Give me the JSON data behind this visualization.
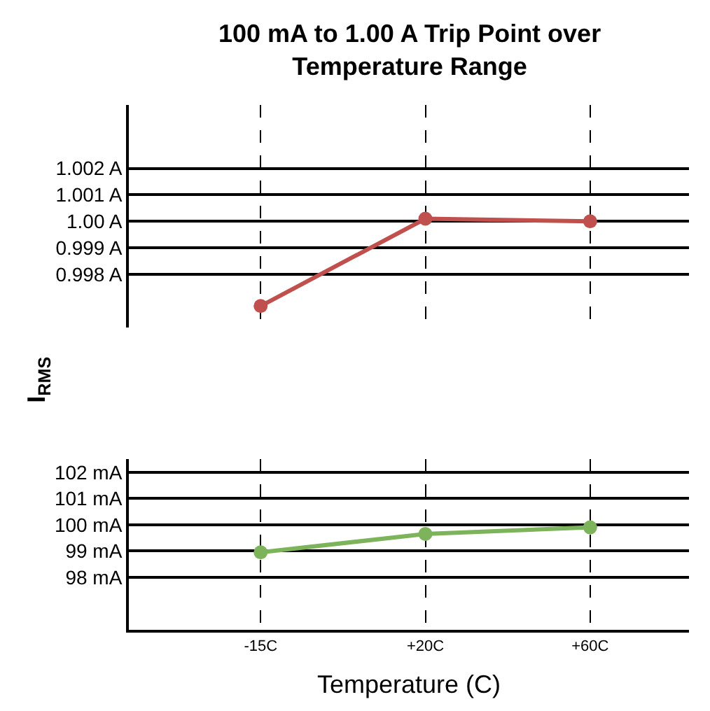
{
  "chart_data": [
    {
      "type": "line",
      "title": "100 mA to 1.00 A Trip Point over Temperature Range",
      "ylabel": "I$_{RMS}$",
      "categories": [
        null,
        null,
        null
      ],
      "series": [
        {
          "color": "#c0504d",
          "values": [
            0.9968,
            1.0001,
            1.0
          ]
        }
      ],
      "ylim": [
        0.996,
        1.0044
      ],
      "yticks": [
        {
          "value": 0.998,
          "label": "0.998 A"
        },
        {
          "value": 0.999,
          "label": "0.999 A"
        },
        {
          "value": 1.0,
          "label": "1.00 A"
        },
        {
          "value": 1.001,
          "label": "1.001 A"
        },
        {
          "value": 1.002,
          "label": "1.002 A"
        }
      ],
      "grid": true,
      "marker": "circle",
      "line_style": "solid",
      "tick_labels": "y"
    },
    {
      "type": "line",
      "xlabel": "Temperature (C)",
      "categories": [
        "-15C",
        "+20C",
        "+60C"
      ],
      "series": [
        {
          "color": "#7db35a",
          "values": [
            98.95,
            99.65,
            99.9
          ]
        }
      ],
      "ylim": [
        96,
        102.5
      ],
      "yticks": [
        {
          "value": 98,
          "label": "98 mA"
        },
        {
          "value": 99,
          "label": "99 mA"
        },
        {
          "value": 100,
          "label": "100 mA"
        },
        {
          "value": 101,
          "label": "101 mA"
        },
        {
          "value": 102,
          "label": "102 mA"
        }
      ],
      "grid": true,
      "marker": "circle",
      "line_style": "solid"
    }
  ]
}
